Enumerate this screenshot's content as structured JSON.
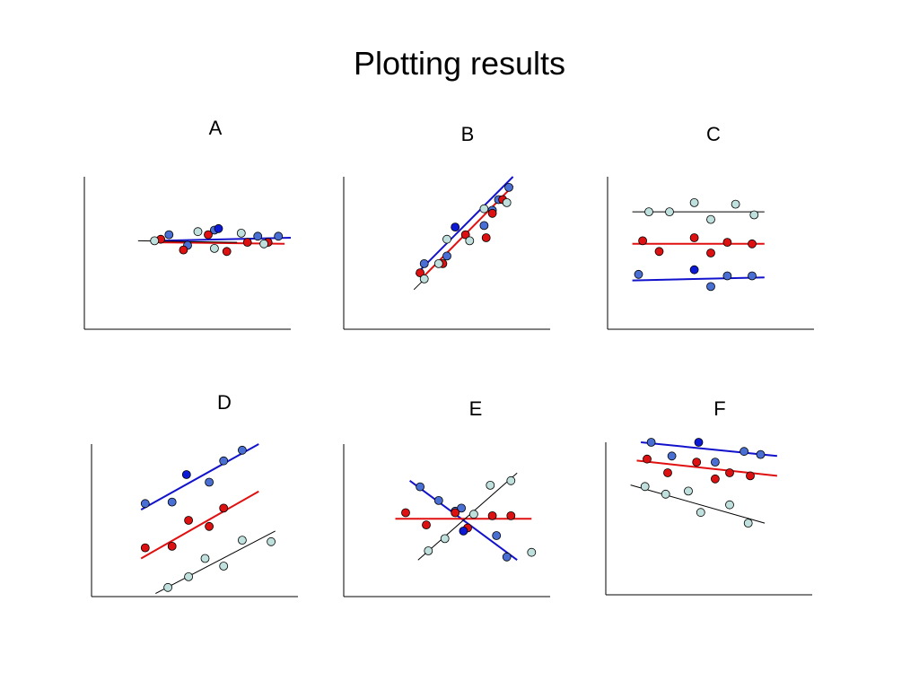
{
  "title": "Plotting results",
  "colors": {
    "series_a": "#4a6fd4",
    "series_b": "#dd1111",
    "series_c": "#bfe0dc",
    "blue_line": "#1212cc",
    "red_line": "#e01010",
    "black_line": "#000000",
    "dark_point": "#0c1ad8"
  },
  "chart_data": [
    {
      "type": "scatter",
      "title": "A",
      "xlim": [
        0,
        10
      ],
      "ylim": [
        0,
        10
      ],
      "series": [
        {
          "color": "series_a",
          "x": [
            4.1,
            5.0,
            6.3,
            8.4,
            9.4
          ],
          "y": [
            6.2,
            5.5,
            6.5,
            6.1,
            6.1
          ]
        },
        {
          "color": "series_b",
          "x": [
            3.7,
            4.8,
            6.0,
            6.9,
            7.9,
            8.9
          ],
          "y": [
            5.9,
            5.2,
            6.2,
            5.1,
            5.7,
            5.7
          ]
        },
        {
          "color": "series_c",
          "x": [
            3.4,
            5.5,
            6.3,
            7.6,
            8.7
          ],
          "y": [
            5.8,
            6.4,
            5.3,
            6.3,
            5.6
          ]
        }
      ],
      "dark_points": [
        {
          "x": 6.5,
          "y": 6.6
        }
      ],
      "lines": [
        {
          "color": "blue_line",
          "x": [
            3.6,
            10.0
          ],
          "y": [
            5.8,
            6.0
          ]
        },
        {
          "color": "red_line",
          "x": [
            3.6,
            9.7
          ],
          "y": [
            5.7,
            5.6
          ]
        },
        {
          "color": "black_line",
          "x": [
            2.6,
            7.4
          ],
          "y": [
            5.8,
            5.7
          ]
        }
      ]
    },
    {
      "type": "scatter",
      "title": "B",
      "xlim": [
        0,
        10
      ],
      "ylim": [
        0,
        10
      ],
      "series": [
        {
          "color": "series_a",
          "x": [
            3.9,
            5.0,
            6.8,
            7.2,
            7.5,
            8.0
          ],
          "y": [
            4.3,
            4.8,
            6.8,
            7.8,
            8.5,
            9.3
          ]
        },
        {
          "color": "series_b",
          "x": [
            3.7,
            4.8,
            5.9,
            6.9,
            7.2,
            7.7
          ],
          "y": [
            3.7,
            4.3,
            6.2,
            6.0,
            7.6,
            8.5
          ]
        },
        {
          "color": "series_c",
          "x": [
            3.9,
            4.6,
            5.0,
            6.1,
            6.8,
            7.9
          ],
          "y": [
            3.3,
            4.3,
            5.9,
            5.8,
            7.9,
            8.3
          ]
        }
      ],
      "dark_points": [
        {
          "x": 5.4,
          "y": 6.7
        }
      ],
      "lines": [
        {
          "color": "blue_line",
          "x": [
            3.5,
            8.2
          ],
          "y": [
            3.6,
            10.0
          ]
        },
        {
          "color": "red_line",
          "x": [
            3.9,
            8.2
          ],
          "y": [
            3.5,
            9.4
          ]
        },
        {
          "color": "black_line",
          "x": [
            3.4,
            4.0
          ],
          "y": [
            2.6,
            3.4
          ]
        }
      ]
    },
    {
      "type": "scatter",
      "title": "C",
      "xlim": [
        0,
        10
      ],
      "ylim": [
        0,
        10
      ],
      "series": [
        {
          "color": "series_a",
          "x": [
            1.5,
            5.0,
            5.8,
            7.0
          ],
          "y": [
            3.6,
            2.8,
            3.5,
            3.5
          ]
        },
        {
          "color": "series_b",
          "x": [
            1.7,
            2.5,
            4.2,
            5.0,
            5.8,
            7.0
          ],
          "y": [
            5.8,
            5.1,
            6.0,
            5.0,
            5.7,
            5.6
          ]
        },
        {
          "color": "series_c",
          "x": [
            2.0,
            3.0,
            4.2,
            5.0,
            6.2,
            7.1
          ],
          "y": [
            7.7,
            7.7,
            8.3,
            7.2,
            8.2,
            7.5
          ]
        }
      ],
      "dark_points": [
        {
          "x": 4.2,
          "y": 3.9
        }
      ],
      "lines": [
        {
          "color": "blue_line",
          "x": [
            1.2,
            7.6
          ],
          "y": [
            3.2,
            3.4
          ]
        },
        {
          "color": "red_line",
          "x": [
            1.2,
            7.6
          ],
          "y": [
            5.6,
            5.6
          ]
        },
        {
          "color": "black_line",
          "x": [
            1.2,
            7.6
          ],
          "y": [
            7.7,
            7.7
          ]
        }
      ]
    },
    {
      "type": "scatter",
      "title": "D",
      "xlim": [
        0,
        10
      ],
      "ylim": [
        0,
        10
      ],
      "series": [
        {
          "color": "series_a",
          "x": [
            2.6,
            3.9,
            5.7,
            6.4,
            7.3
          ],
          "y": [
            6.1,
            6.2,
            7.5,
            8.9,
            9.6
          ]
        },
        {
          "color": "series_b",
          "x": [
            2.6,
            3.9,
            4.7,
            5.7,
            6.4
          ],
          "y": [
            3.2,
            3.3,
            5.0,
            4.6,
            5.8
          ]
        },
        {
          "color": "series_c",
          "x": [
            3.7,
            4.7,
            5.5,
            6.4,
            7.3,
            8.7
          ],
          "y": [
            0.6,
            1.3,
            2.5,
            2.0,
            3.7,
            3.6
          ]
        }
      ],
      "dark_points": [
        {
          "x": 4.6,
          "y": 8.0
        }
      ],
      "lines": [
        {
          "color": "blue_line",
          "x": [
            2.4,
            8.1
          ],
          "y": [
            5.7,
            10.0
          ]
        },
        {
          "color": "red_line",
          "x": [
            2.4,
            8.1
          ],
          "y": [
            2.5,
            6.9
          ]
        },
        {
          "color": "black_line",
          "x": [
            3.1,
            8.9
          ],
          "y": [
            0.2,
            4.3
          ]
        }
      ]
    },
    {
      "type": "scatter",
      "title": "E",
      "xlim": [
        0,
        10
      ],
      "ylim": [
        0,
        10
      ],
      "series": [
        {
          "color": "series_a",
          "x": [
            3.7,
            4.6,
            5.4,
            5.7,
            7.4,
            7.9
          ],
          "y": [
            7.2,
            6.3,
            5.6,
            5.8,
            4.0,
            2.6
          ]
        },
        {
          "color": "series_b",
          "x": [
            3.0,
            4.0,
            5.4,
            6.0,
            7.2,
            8.1
          ],
          "y": [
            5.5,
            4.7,
            5.5,
            4.5,
            5.3,
            5.3
          ]
        },
        {
          "color": "series_c",
          "x": [
            4.1,
            4.9,
            6.3,
            7.1,
            8.1,
            9.1
          ],
          "y": [
            3.0,
            3.8,
            5.4,
            7.3,
            7.6,
            2.9
          ]
        }
      ],
      "dark_points": [
        {
          "x": 5.8,
          "y": 4.3
        }
      ],
      "lines": [
        {
          "color": "blue_line",
          "x": [
            3.2,
            8.4
          ],
          "y": [
            7.6,
            2.4
          ]
        },
        {
          "color": "red_line",
          "x": [
            2.5,
            9.1
          ],
          "y": [
            5.1,
            5.1
          ]
        },
        {
          "color": "black_line",
          "x": [
            3.6,
            8.4
          ],
          "y": [
            2.4,
            8.1
          ]
        }
      ]
    },
    {
      "type": "scatter",
      "title": "F",
      "xlim": [
        0,
        10
      ],
      "ylim": [
        0,
        10
      ],
      "series": [
        {
          "color": "series_a",
          "x": [
            2.2,
            3.2,
            5.3,
            6.7,
            7.5
          ],
          "y": [
            10.0,
            9.1,
            8.7,
            9.4,
            9.2
          ]
        },
        {
          "color": "series_b",
          "x": [
            2.0,
            3.0,
            4.4,
            5.3,
            6.0,
            7.0
          ],
          "y": [
            8.9,
            8.0,
            8.7,
            7.6,
            8.0,
            7.8
          ]
        },
        {
          "color": "series_c",
          "x": [
            1.9,
            2.9,
            4.0,
            4.6,
            6.0,
            6.9
          ],
          "y": [
            7.1,
            6.6,
            6.8,
            5.4,
            5.9,
            4.7
          ]
        }
      ],
      "dark_points": [
        {
          "x": 4.5,
          "y": 10.0
        }
      ],
      "lines": [
        {
          "color": "blue_line",
          "x": [
            1.7,
            8.3
          ],
          "y": [
            10.0,
            9.1
          ]
        },
        {
          "color": "red_line",
          "x": [
            1.5,
            8.3
          ],
          "y": [
            8.8,
            7.8
          ]
        },
        {
          "color": "black_line",
          "x": [
            1.2,
            7.7
          ],
          "y": [
            7.2,
            4.7
          ]
        }
      ]
    }
  ]
}
